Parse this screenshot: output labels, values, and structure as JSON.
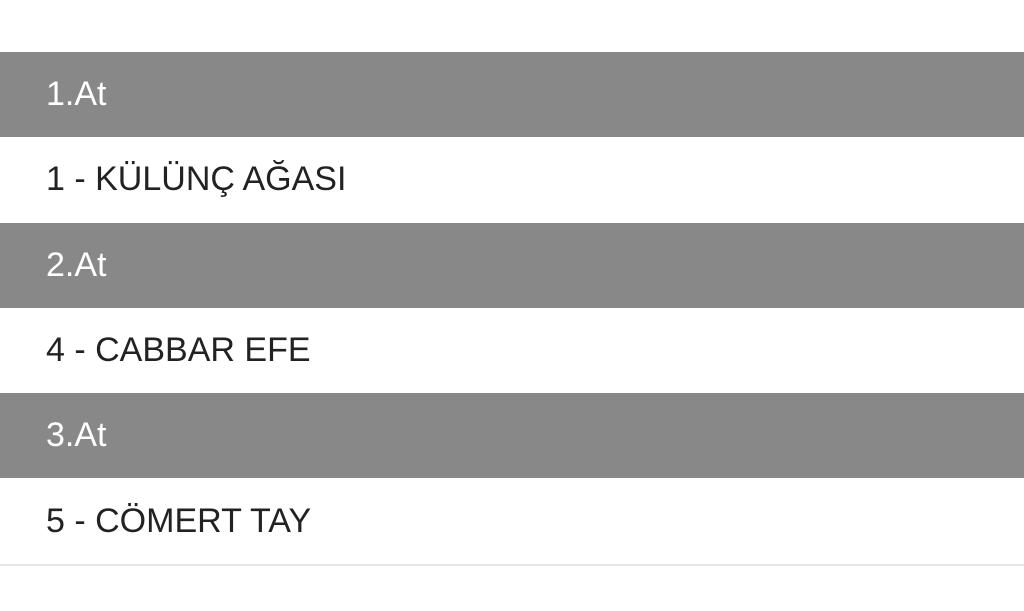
{
  "results": [
    {
      "position": "1.At",
      "horse": "1 - KÜLÜNÇ AĞASI"
    },
    {
      "position": "2.At",
      "horse": "4 - CABBAR EFE"
    },
    {
      "position": "3.At",
      "horse": "5 - CÖMERT TAY"
    }
  ],
  "colors": {
    "header_bg": "#888888",
    "header_text": "#ffffff",
    "item_text": "#222222"
  }
}
